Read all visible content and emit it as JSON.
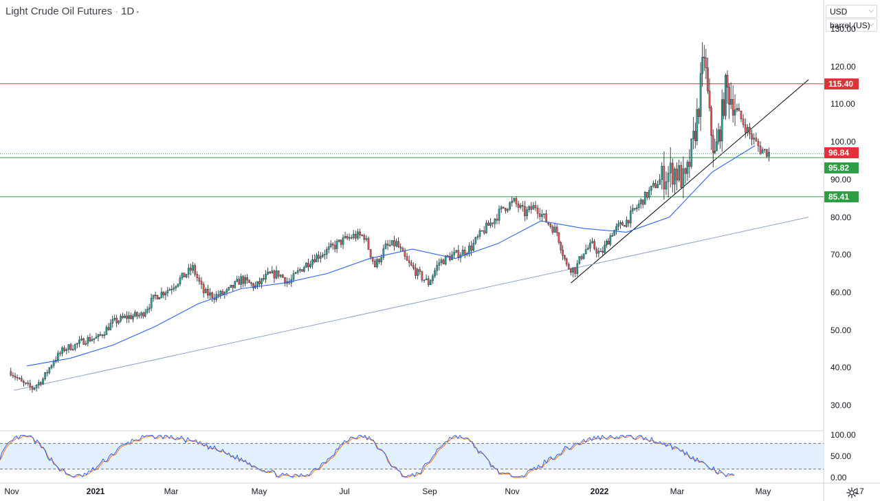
{
  "header": {
    "symbol": "Light Crude Oil Futures",
    "interval": "1D",
    "currency": "USD",
    "unit": "barrel (US)"
  },
  "price_axis": {
    "ticks": [
      "130.00",
      "120.00",
      "110.00",
      "100.00",
      "90.00",
      "80.00",
      "70.00",
      "60.00",
      "50.00",
      "40.00",
      "30.00"
    ]
  },
  "osc_axis": {
    "ticks": [
      "100.00",
      "50.00",
      "0.00"
    ]
  },
  "time_axis": {
    "labels": [
      {
        "text": "Nov",
        "bold": false
      },
      {
        "text": "2021",
        "bold": true
      },
      {
        "text": "Mar",
        "bold": false
      },
      {
        "text": "May",
        "bold": false
      },
      {
        "text": "Jul",
        "bold": false
      },
      {
        "text": "Sep",
        "bold": false
      },
      {
        "text": "Nov",
        "bold": false
      },
      {
        "text": "2022",
        "bold": true
      },
      {
        "text": "Mar",
        "bold": false
      },
      {
        "text": "May",
        "bold": false
      },
      {
        "text": "17",
        "bold": false
      }
    ]
  },
  "price_tags": [
    {
      "value": "115.40",
      "color": "#e0323a"
    },
    {
      "value": "96.84",
      "color": "#e0323a"
    },
    {
      "value": "95.82",
      "color": "#2e9e44"
    },
    {
      "value": "85.41",
      "color": "#2e9e44"
    }
  ],
  "icons": {
    "settings": "gear-icon",
    "dropdown": "chevron-down-icon"
  },
  "colors": {
    "up_candle": "#26a69a",
    "down_candle": "#ef5350",
    "ma_line": "#2962ff",
    "resistance": "#e0323a",
    "support": "#2e9e44",
    "trendline": "#000000",
    "long_trendline": "#8fa2cc",
    "stoch_k": "#2962ff",
    "stoch_d": "#ff6d00",
    "stoch_band": "#e3f0fd"
  },
  "chart_data": {
    "type": "candlestick",
    "ylim": [
      24,
      134
    ],
    "horizontal_levels": [
      {
        "value": 115.4,
        "style": "solid",
        "color": "#e0323a"
      },
      {
        "value": 96.84,
        "style": "dotted",
        "color": "#2e9e44"
      },
      {
        "value": 95.82,
        "style": "solid",
        "color": "#2e9e44"
      },
      {
        "value": 85.41,
        "style": "solid",
        "color": "#2e9e44"
      }
    ],
    "moving_average_points": [
      [
        "Nov 2020",
        40.5
      ],
      [
        "Dec 2020",
        42.5
      ],
      [
        "Jan 2021",
        46
      ],
      [
        "Feb 2021",
        51
      ],
      [
        "Mar 2021",
        57
      ],
      [
        "Apr 2021",
        61
      ],
      [
        "May 2021",
        62.5
      ],
      [
        "Jun 2021",
        65
      ],
      [
        "Jul 2021",
        69
      ],
      [
        "Aug 2021",
        71.5
      ],
      [
        "Sep 2021",
        69
      ],
      [
        "Oct 2021",
        73
      ],
      [
        "Nov 2021",
        79
      ],
      [
        "Dec 2021",
        77
      ],
      [
        "Jan 2022",
        76
      ],
      [
        "Feb 2022",
        80
      ],
      [
        "Mar 2022",
        92
      ],
      [
        "Apr 2022",
        99
      ]
    ],
    "price_path": [
      [
        "Nov 2020",
        39
      ],
      [
        "Nov 2020",
        36
      ],
      [
        "Nov 2020",
        34.5
      ],
      [
        "Nov 2020",
        37
      ],
      [
        "Dec 2020",
        42
      ],
      [
        "Dec 2020",
        45
      ],
      [
        "Dec 2020",
        46
      ],
      [
        "Dec 2020",
        47.5
      ],
      [
        "Jan 2021",
        48
      ],
      [
        "Jan 2021",
        52
      ],
      [
        "Jan 2021",
        53.5
      ],
      [
        "Feb 2021",
        54
      ],
      [
        "Feb 2021",
        59
      ],
      [
        "Feb 2021",
        61
      ],
      [
        "Mar 2021",
        64
      ],
      [
        "Mar 2021",
        66.5
      ],
      [
        "Mar 2021",
        60
      ],
      [
        "Mar 2021",
        59
      ],
      [
        "Apr 2021",
        60
      ],
      [
        "Apr 2021",
        63.5
      ],
      [
        "Apr 2021",
        61.5
      ],
      [
        "May 2021",
        64.5
      ],
      [
        "May 2021",
        65
      ],
      [
        "May 2021",
        62.5
      ],
      [
        "May 2021",
        66
      ],
      [
        "Jun 2021",
        69
      ],
      [
        "Jun 2021",
        71
      ],
      [
        "Jun 2021",
        73.5
      ],
      [
        "Jul 2021",
        75
      ],
      [
        "Jul 2021",
        75
      ],
      [
        "Jul 2021",
        67
      ],
      [
        "Jul 2021",
        72
      ],
      [
        "Aug 2021",
        73
      ],
      [
        "Aug 2021",
        68
      ],
      [
        "Aug 2021",
        65
      ],
      [
        "Aug 2021",
        62.5
      ],
      [
        "Sep 2021",
        68
      ],
      [
        "Sep 2021",
        69.5
      ],
      [
        "Sep 2021",
        70.5
      ],
      [
        "Sep 2021",
        72
      ],
      [
        "Oct 2021",
        76
      ],
      [
        "Oct 2021",
        79
      ],
      [
        "Oct 2021",
        82.5
      ],
      [
        "Oct 2021",
        84
      ],
      [
        "Nov 2021",
        81
      ],
      [
        "Nov 2021",
        83
      ],
      [
        "Nov 2021",
        79
      ],
      [
        "Nov 2021",
        76
      ],
      [
        "Dec 2021",
        67
      ],
      [
        "Dec 2021",
        66
      ],
      [
        "Dec 2021",
        71
      ],
      [
        "Dec 2021",
        72.5
      ],
      [
        "Dec 2021",
        70
      ],
      [
        "Jan 2022",
        76
      ],
      [
        "Jan 2022",
        79
      ],
      [
        "Jan 2022",
        84
      ],
      [
        "Feb 2022",
        88
      ],
      [
        "Feb 2022",
        91
      ],
      [
        "Feb 2022",
        92.5
      ],
      [
        "Feb 2022",
        89
      ],
      [
        "Mar 2022",
        100
      ],
      [
        "Mar 2022",
        110
      ],
      [
        "Mar 2022",
        123.7
      ],
      [
        "Mar 2022",
        106
      ],
      [
        "Mar 2022",
        96
      ],
      [
        "Mar 2022",
        104
      ],
      [
        "Mar 2022",
        114
      ],
      [
        "Mar 2022",
        112
      ],
      [
        "Apr 2022",
        107
      ],
      [
        "Apr 2022",
        102
      ],
      [
        "Apr 2022",
        98
      ],
      [
        "Apr 2022",
        96.84
      ]
    ],
    "trendlines": [
      {
        "from": [
          "Dec 2021",
          62.5
        ],
        "to": [
          "May 2022",
          116.5
        ],
        "color": "#000000"
      },
      {
        "from": [
          "Nov 2020",
          34
        ],
        "to": [
          "May 2022",
          80
        ],
        "color": "#8fa2cc"
      }
    ],
    "stochastic": {
      "ylim": [
        0,
        100
      ],
      "bands": [
        20,
        80
      ]
    }
  }
}
